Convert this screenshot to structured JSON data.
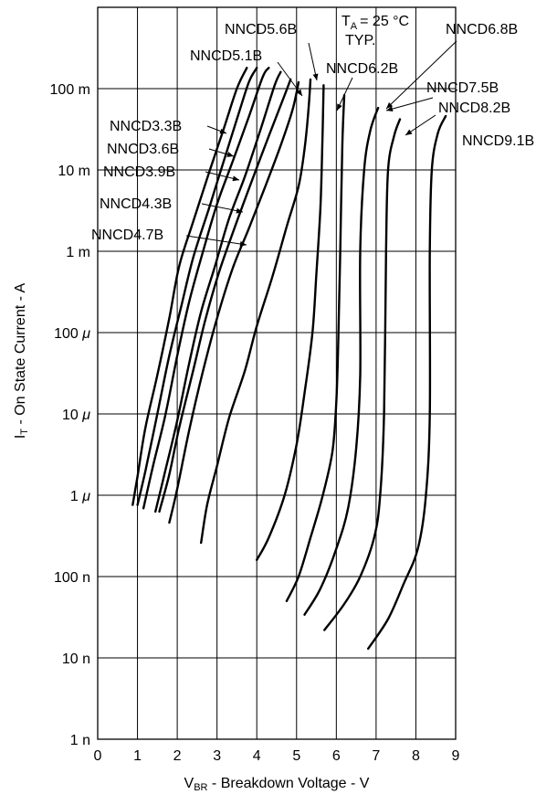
{
  "chart_data": {
    "type": "line",
    "title": "",
    "annotation_condition": {
      "prefix": "T",
      "subscript": "A",
      "value": "= 25 °C"
    },
    "annotation_typ": "TYP.",
    "xlabel": {
      "prefix": "V",
      "subscript": "BR",
      "text": " -  Breakdown Voltage  - V"
    },
    "ylabel": {
      "prefix": "I",
      "subscript": "T",
      "text": " -  On State Current  - A"
    },
    "x_scale": "linear",
    "y_scale": "log",
    "xlim": [
      0,
      9
    ],
    "ylim_amperes": [
      1e-09,
      1
    ],
    "grid": true,
    "x_ticks": [
      {
        "value": 0,
        "label": "0"
      },
      {
        "value": 1,
        "label": "1"
      },
      {
        "value": 2,
        "label": "2"
      },
      {
        "value": 3,
        "label": "3"
      },
      {
        "value": 4,
        "label": "4"
      },
      {
        "value": 5,
        "label": "5"
      },
      {
        "value": 6,
        "label": "6"
      },
      {
        "value": 7,
        "label": "7"
      },
      {
        "value": 8,
        "label": "8"
      },
      {
        "value": 9,
        "label": "9"
      }
    ],
    "y_ticks": [
      {
        "value": 1e-09,
        "num": "1",
        "unit": "n"
      },
      {
        "value": 1e-08,
        "num": "10",
        "unit": "n"
      },
      {
        "value": 1e-07,
        "num": "100",
        "unit": "n"
      },
      {
        "value": 1e-06,
        "num": "1",
        "unit": "μ"
      },
      {
        "value": 1e-05,
        "num": "10",
        "unit": "μ"
      },
      {
        "value": 0.0001,
        "num": "100",
        "unit": "μ"
      },
      {
        "value": 0.001,
        "num": "1",
        "unit": "m"
      },
      {
        "value": 0.01,
        "num": "10",
        "unit": "m"
      },
      {
        "value": 0.1,
        "num": "100",
        "unit": "m"
      }
    ],
    "series": [
      {
        "name": "NNCD3.3B",
        "points": [
          [
            0.88,
            7.6e-07
          ],
          [
            1.0,
            1.7e-06
          ],
          [
            1.2,
            6.8e-06
          ],
          [
            1.5,
            3e-05
          ],
          [
            1.8,
            0.00015
          ],
          [
            2.05,
            0.00066
          ],
          [
            2.4,
            0.0023
          ],
          [
            2.8,
            0.0093
          ],
          [
            3.15,
            0.03
          ],
          [
            3.5,
            0.1
          ],
          [
            3.75,
            0.18
          ]
        ]
      },
      {
        "name": "NNCD3.6B",
        "points": [
          [
            1.0,
            7.6e-07
          ],
          [
            1.2,
            2e-06
          ],
          [
            1.5,
            1e-05
          ],
          [
            1.8,
            5.2e-05
          ],
          [
            2.1,
            0.00021
          ],
          [
            2.4,
            0.00083
          ],
          [
            2.8,
            0.0034
          ],
          [
            3.15,
            0.012
          ],
          [
            3.5,
            0.042
          ],
          [
            3.8,
            0.12
          ],
          [
            4.0,
            0.18
          ]
        ]
      },
      {
        "name": "NNCD3.9B",
        "points": [
          [
            1.15,
            6.9e-07
          ],
          [
            1.4,
            2.4e-06
          ],
          [
            1.7,
            9.6e-06
          ],
          [
            2.0,
            5.2e-05
          ],
          [
            2.3,
            0.00024
          ],
          [
            2.65,
            0.001
          ],
          [
            3.0,
            0.0038
          ],
          [
            3.4,
            0.013
          ],
          [
            3.8,
            0.045
          ],
          [
            4.15,
            0.14
          ],
          [
            4.3,
            0.18
          ]
        ]
      },
      {
        "name": "NNCD4.3B",
        "points": [
          [
            1.45,
            6.3e-07
          ],
          [
            1.7,
            2e-06
          ],
          [
            2.0,
            8.3e-06
          ],
          [
            2.3,
            4.2e-05
          ],
          [
            2.6,
            0.00018
          ],
          [
            2.95,
            0.00066
          ],
          [
            3.3,
            0.0025
          ],
          [
            3.7,
            0.0083
          ],
          [
            4.1,
            0.032
          ],
          [
            4.45,
            0.11
          ],
          [
            4.6,
            0.16
          ]
        ]
      },
      {
        "name": "NNCD4.7B",
        "points": [
          [
            1.55,
            6.3e-07
          ],
          [
            1.8,
            1.8e-06
          ],
          [
            2.05,
            6.8e-06
          ],
          [
            2.4,
            3.4e-05
          ],
          [
            2.7,
            0.00014
          ],
          [
            3.05,
            0.00055
          ],
          [
            3.45,
            0.002
          ],
          [
            3.85,
            0.0068
          ],
          [
            4.3,
            0.026
          ],
          [
            4.7,
            0.083
          ],
          [
            4.85,
            0.13
          ]
        ]
      },
      {
        "name": "NNCD5.1B",
        "points": [
          [
            1.8,
            4.6e-07
          ],
          [
            2.0,
            1.2e-06
          ],
          [
            2.3,
            6.3e-06
          ],
          [
            2.65,
            3.4e-05
          ],
          [
            3.0,
            0.00015
          ],
          [
            3.4,
            0.00063
          ],
          [
            3.8,
            0.0019
          ],
          [
            4.2,
            0.006
          ],
          [
            4.6,
            0.02
          ],
          [
            4.9,
            0.055
          ],
          [
            5.05,
            0.12
          ]
        ]
      },
      {
        "name": "NNCD5.6B",
        "points": [
          [
            2.6,
            2.6e-07
          ],
          [
            2.75,
            7.6e-07
          ],
          [
            3.0,
            2.3e-06
          ],
          [
            3.3,
            8.8e-06
          ],
          [
            3.7,
            3.4e-05
          ],
          [
            4.0,
            0.00012
          ],
          [
            4.4,
            0.0005
          ],
          [
            4.75,
            0.002
          ],
          [
            5.05,
            0.0063
          ],
          [
            5.2,
            0.018
          ],
          [
            5.3,
            0.055
          ],
          [
            5.35,
            0.13
          ]
        ]
      },
      {
        "name": "NNCD6.2B",
        "points": [
          [
            4.0,
            1.6e-07
          ],
          [
            4.3,
            3e-07
          ],
          [
            4.7,
            1e-06
          ],
          [
            5.0,
            4.2e-06
          ],
          [
            5.2,
            1.8e-05
          ],
          [
            5.4,
            0.0001
          ],
          [
            5.5,
            0.00055
          ],
          [
            5.6,
            0.0034
          ],
          [
            5.65,
            0.023
          ],
          [
            5.68,
            0.11
          ]
        ]
      },
      {
        "name": "NNCD6.8B",
        "points": [
          [
            4.75,
            5e-08
          ],
          [
            5.05,
            1e-07
          ],
          [
            5.35,
            3e-07
          ],
          [
            5.65,
            9.6e-07
          ],
          [
            5.9,
            3.4e-06
          ],
          [
            6.0,
            1.4e-05
          ],
          [
            6.05,
            8.3e-05
          ],
          [
            6.1,
            0.0011
          ],
          [
            6.15,
            0.02
          ],
          [
            6.2,
            0.083
          ]
        ]
      },
      {
        "name": "NNCD7.5B",
        "points": [
          [
            5.2,
            3.4e-08
          ],
          [
            5.6,
            7.1e-08
          ],
          [
            6.0,
            2.2e-07
          ],
          [
            6.3,
            7.1e-07
          ],
          [
            6.5,
            3.8e-06
          ],
          [
            6.6,
            3e-05
          ],
          [
            6.6,
            0.001
          ],
          [
            6.7,
            0.01
          ],
          [
            6.85,
            0.03
          ],
          [
            7.05,
            0.058
          ]
        ]
      },
      {
        "name": "NNCD8.2B",
        "points": [
          [
            5.7,
            2.2e-08
          ],
          [
            6.2,
            4.6e-08
          ],
          [
            6.6,
            1e-07
          ],
          [
            6.95,
            3e-07
          ],
          [
            7.1,
            9.6e-07
          ],
          [
            7.2,
            1e-05
          ],
          [
            7.25,
            0.001
          ],
          [
            7.3,
            0.01
          ],
          [
            7.45,
            0.026
          ],
          [
            7.6,
            0.042
          ]
        ]
      },
      {
        "name": "NNCD9.1B",
        "points": [
          [
            6.8,
            1.3e-08
          ],
          [
            7.3,
            3e-08
          ],
          [
            7.7,
            8.3e-08
          ],
          [
            8.05,
            2.2e-07
          ],
          [
            8.25,
            9.6e-07
          ],
          [
            8.35,
            1e-05
          ],
          [
            8.35,
            0.001
          ],
          [
            8.4,
            0.01
          ],
          [
            8.55,
            0.028
          ],
          [
            8.75,
            0.046
          ]
        ]
      }
    ]
  }
}
